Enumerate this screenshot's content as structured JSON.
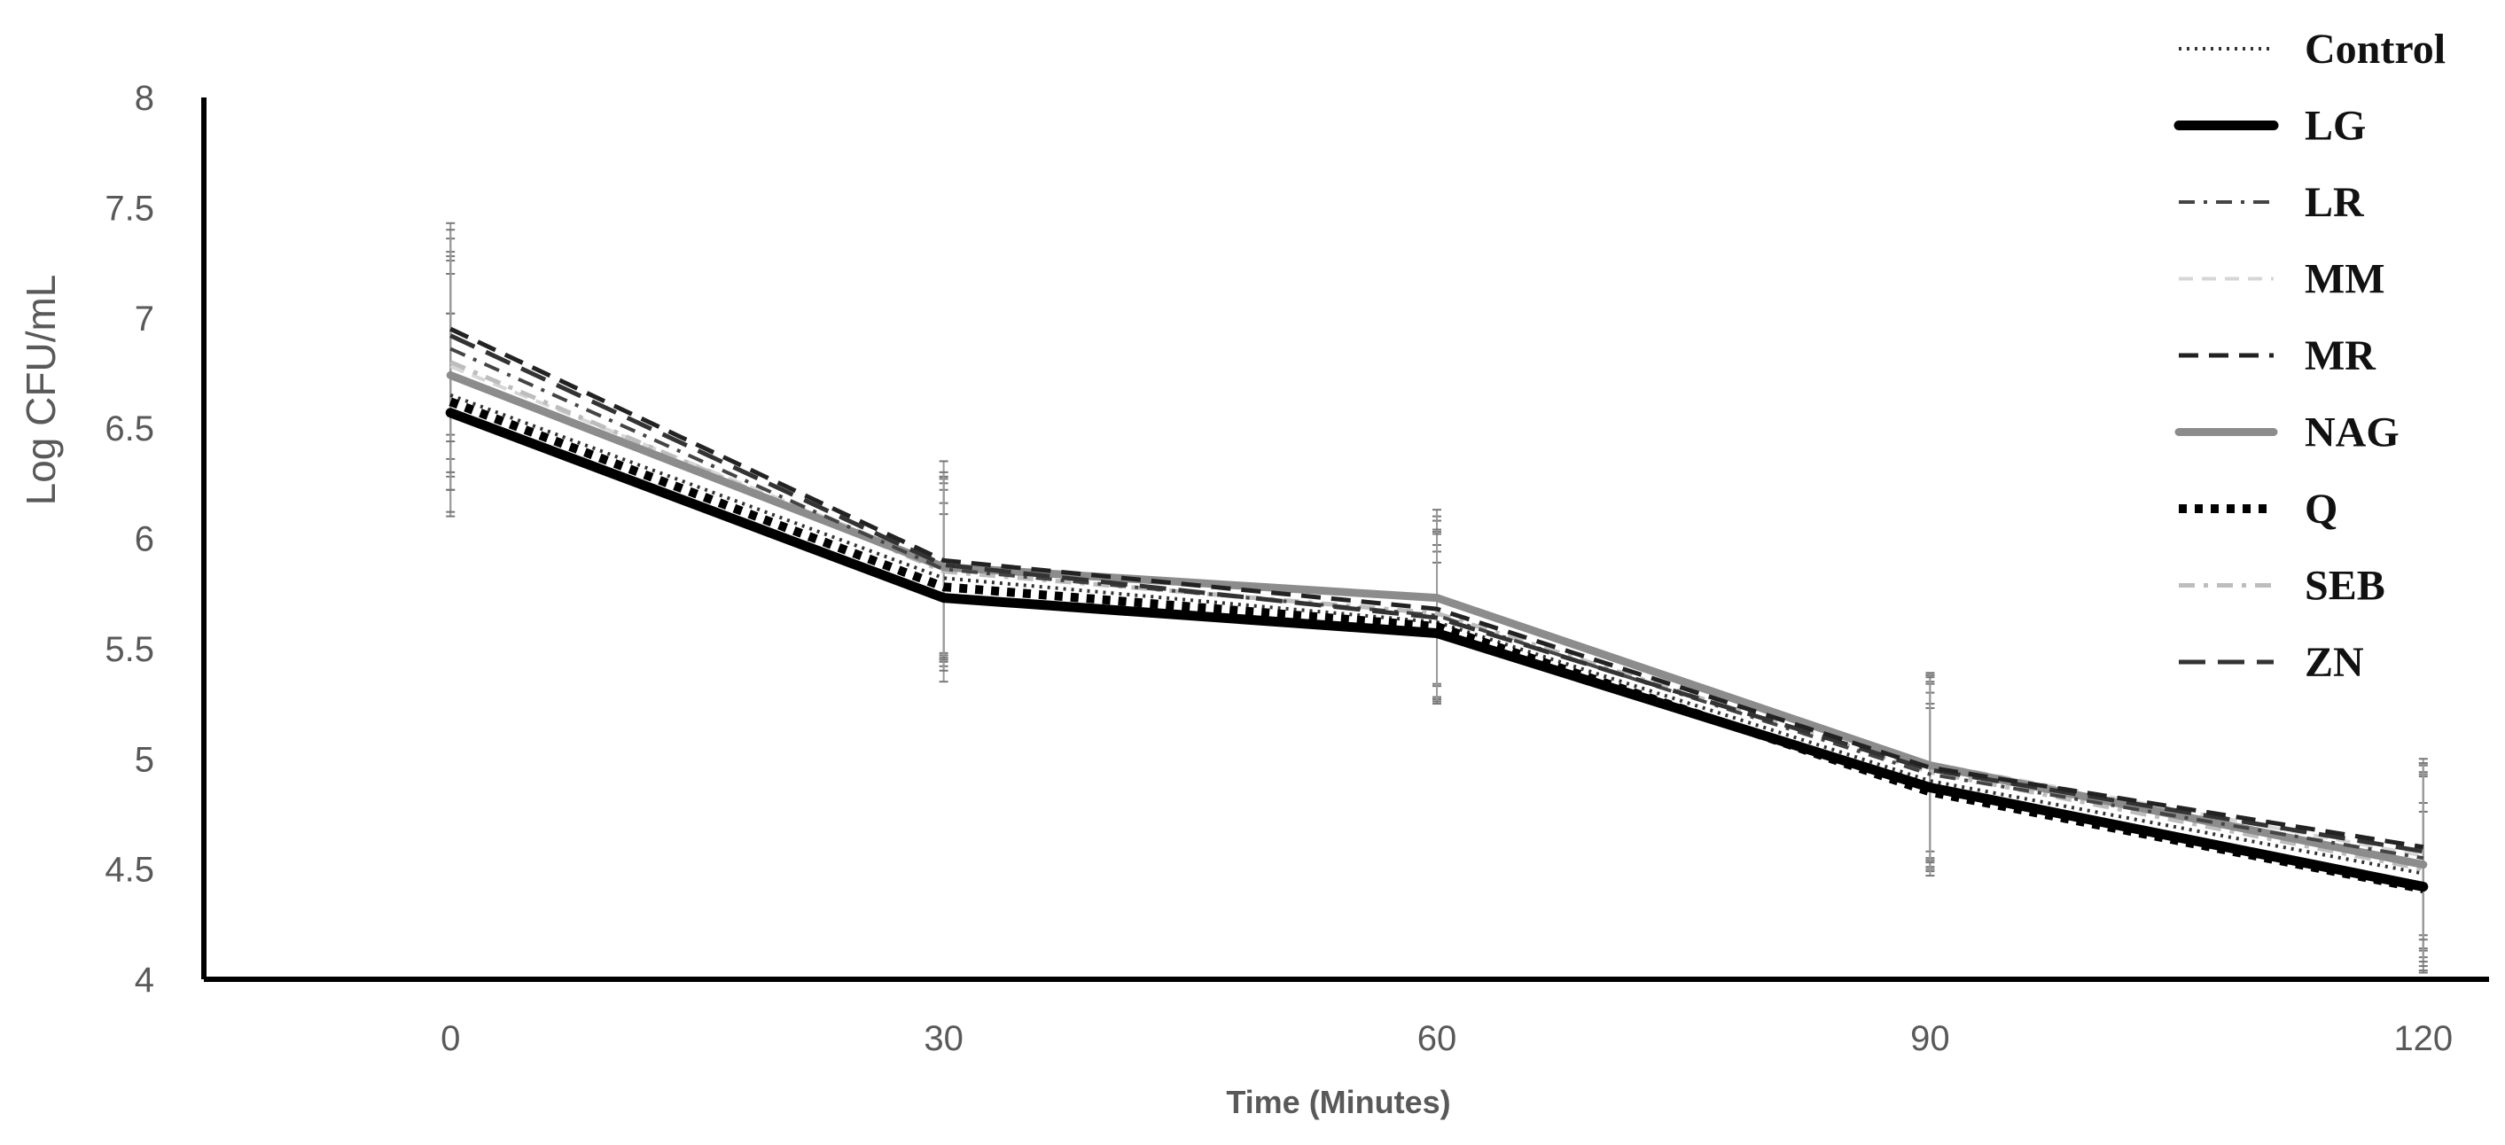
{
  "chart_data": {
    "type": "line",
    "title": "",
    "xlabel": "Time (Minutes)",
    "ylabel": "Log CFU/mL",
    "x": [
      0,
      30,
      60,
      90,
      120
    ],
    "xlim": [
      -15,
      124
    ],
    "ylim": [
      4,
      8
    ],
    "yticks": [
      "4",
      "4.5",
      "5",
      "5.5",
      "6",
      "6.5",
      "7",
      "7.5",
      "8"
    ],
    "xticks": [
      "0",
      "30",
      "60",
      "90",
      "120"
    ],
    "grid": false,
    "legend": "right",
    "series": [
      {
        "name": "Control",
        "values": [
          6.65,
          5.82,
          5.62,
          4.9,
          4.48
        ],
        "err": [
          0.55,
          0.4,
          0.35,
          0.4,
          0.45
        ],
        "style": "dotted-thin",
        "color": "#333333"
      },
      {
        "name": "LG",
        "values": [
          6.57,
          5.73,
          5.57,
          4.87,
          4.42
        ],
        "err": [
          0.45,
          0.38,
          0.32,
          0.38,
          0.38
        ],
        "style": "solid-thick",
        "color": "#000000"
      },
      {
        "name": "LR",
        "values": [
          6.86,
          5.86,
          5.65,
          4.93,
          4.55
        ],
        "err": [
          0.5,
          0.42,
          0.38,
          0.42,
          0.42
        ],
        "style": "dash-dot",
        "color": "#444444"
      },
      {
        "name": "MM",
        "values": [
          6.78,
          5.88,
          5.72,
          4.98,
          4.56
        ],
        "err": [
          0.5,
          0.4,
          0.38,
          0.4,
          0.42
        ],
        "style": "dashed-light",
        "color": "#d6d6d6"
      },
      {
        "name": "MR",
        "values": [
          6.95,
          5.9,
          5.68,
          4.96,
          4.6
        ],
        "err": [
          0.48,
          0.45,
          0.4,
          0.42,
          0.4
        ],
        "style": "dashed",
        "color": "#222222"
      },
      {
        "name": "NAG",
        "values": [
          6.74,
          5.87,
          5.73,
          4.97,
          4.52
        ],
        "err": [
          0.52,
          0.4,
          0.4,
          0.42,
          0.42
        ],
        "style": "solid-gray-thick",
        "color": "#8c8c8c"
      },
      {
        "name": "Q",
        "values": [
          6.62,
          5.78,
          5.6,
          4.85,
          4.41
        ],
        "err": [
          0.4,
          0.38,
          0.34,
          0.38,
          0.35
        ],
        "style": "dotted-thick",
        "color": "#000000"
      },
      {
        "name": "SEB",
        "values": [
          6.8,
          5.85,
          5.66,
          4.94,
          4.5
        ],
        "err": [
          0.5,
          0.4,
          0.38,
          0.4,
          0.42
        ],
        "style": "dash-dot-light",
        "color": "#bdbdbd"
      },
      {
        "name": "ZN",
        "values": [
          6.92,
          5.88,
          5.64,
          4.95,
          4.58
        ],
        "err": [
          0.48,
          0.42,
          0.38,
          0.42,
          0.4
        ],
        "style": "long-dash",
        "color": "#333333"
      }
    ]
  }
}
